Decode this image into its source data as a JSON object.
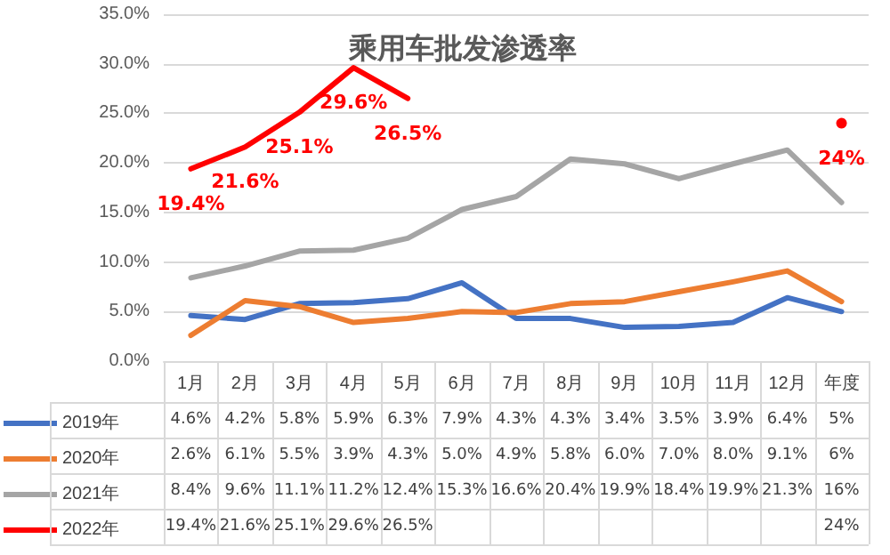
{
  "chart_data": {
    "type": "line",
    "title": "乘用车批发渗透率",
    "categories": [
      "1月",
      "2月",
      "3月",
      "4月",
      "5月",
      "6月",
      "7月",
      "8月",
      "9月",
      "10月",
      "11月",
      "12月",
      "年度"
    ],
    "series": [
      {
        "name": "2019年",
        "color": "#4472c4",
        "values": [
          4.6,
          4.2,
          5.8,
          5.9,
          6.3,
          7.9,
          4.3,
          4.3,
          3.4,
          3.5,
          3.9,
          6.4,
          5
        ],
        "value_labels": [
          "4.6%",
          "4.2%",
          "5.8%",
          "5.9%",
          "6.3%",
          "7.9%",
          "4.3%",
          "4.3%",
          "3.4%",
          "3.5%",
          "3.9%",
          "6.4%",
          "5%"
        ]
      },
      {
        "name": "2020年",
        "color": "#ed7d31",
        "values": [
          2.6,
          6.1,
          5.5,
          3.9,
          4.3,
          5.0,
          4.9,
          5.8,
          6.0,
          7.0,
          8.0,
          9.1,
          6
        ],
        "value_labels": [
          "2.6%",
          "6.1%",
          "5.5%",
          "3.9%",
          "4.3%",
          "5.0%",
          "4.9%",
          "5.8%",
          "6.0%",
          "7.0%",
          "8.0%",
          "9.1%",
          "6%"
        ]
      },
      {
        "name": "2021年",
        "color": "#a5a5a5",
        "values": [
          8.4,
          9.6,
          11.1,
          11.2,
          12.4,
          15.3,
          16.6,
          20.4,
          19.9,
          18.4,
          19.9,
          21.3,
          16
        ],
        "value_labels": [
          "8.4%",
          "9.6%",
          "11.1%",
          "11.2%",
          "12.4%",
          "15.3%",
          "16.6%",
          "20.4%",
          "19.9%",
          "18.4%",
          "19.9%",
          "21.3%",
          "16%"
        ]
      },
      {
        "name": "2022年",
        "color": "#ff0000",
        "values": [
          19.4,
          21.6,
          25.1,
          29.6,
          26.5,
          null,
          null,
          null,
          null,
          null,
          null,
          null,
          24
        ],
        "value_labels": [
          "19.4%",
          "21.6%",
          "25.1%",
          "29.6%",
          "26.5%",
          null,
          null,
          null,
          null,
          null,
          null,
          null,
          "24%"
        ]
      }
    ],
    "annotations": [
      {
        "text": "19.4%",
        "x": "1月",
        "y": 19.4
      },
      {
        "text": "21.6%",
        "x": "2月",
        "y": 21.6
      },
      {
        "text": "25.1%",
        "x": "3月",
        "y": 25.1
      },
      {
        "text": "29.6%",
        "x": "4月",
        "y": 29.6
      },
      {
        "text": "26.5%",
        "x": "5月",
        "y": 26.5
      },
      {
        "text": "24%",
        "x": "年度",
        "y": 24
      }
    ],
    "ylim": [
      0,
      35
    ],
    "yticks": [
      {
        "value": 0,
        "label": "0.0%"
      },
      {
        "value": 5,
        "label": "5.0%"
      },
      {
        "value": 10,
        "label": "10.0%"
      },
      {
        "value": 15,
        "label": "15.0%"
      },
      {
        "value": 20,
        "label": "20.0%"
      },
      {
        "value": 25,
        "label": "25.0%"
      },
      {
        "value": 30,
        "label": "30.0%"
      },
      {
        "value": 35,
        "label": "35.0%"
      }
    ],
    "grid": "y",
    "legend": "bottom",
    "marker": "none",
    "line_style": "solid"
  }
}
